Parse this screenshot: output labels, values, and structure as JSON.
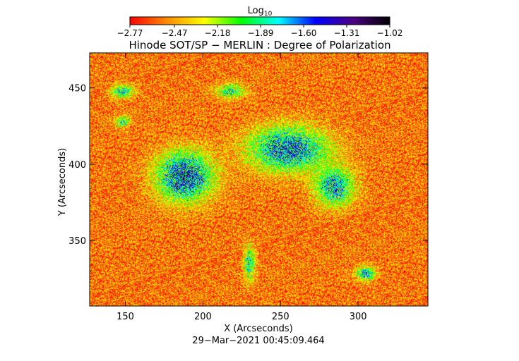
{
  "chart_data": {
    "type": "heatmap",
    "title": "Hinode SOT/SP − MERLIN : Degree of Polarization",
    "xlabel": "X (Arcseconds)",
    "ylabel": "Y (Arcseconds)",
    "timestamp": "29−Mar−2021 00:45:09.464",
    "xlim": [
      127,
      345
    ],
    "ylim": [
      307,
      473
    ],
    "x_ticks": [
      150,
      200,
      250,
      300
    ],
    "x_tick_labels": [
      "150",
      "200",
      "250",
      "300"
    ],
    "y_ticks": [
      350,
      400,
      450
    ],
    "y_tick_labels": [
      "350",
      "400",
      "450"
    ],
    "colorbar": {
      "label_base": "Log",
      "label_sub": "10",
      "min": -2.77,
      "max": -1.02,
      "tick_values": [
        -2.77,
        -2.47,
        -2.18,
        -1.89,
        -1.6,
        -1.31,
        -1.02
      ],
      "tick_labels": [
        "−2.77",
        "−2.47",
        "−2.18",
        "−1.89",
        "−1.60",
        "−1.31",
        "−1.02"
      ],
      "colormap": [
        "#ff0000",
        "#ff8c00",
        "#ffff00",
        "#00ff00",
        "#00ffff",
        "#0000ff",
        "#4b0082",
        "#000000"
      ]
    },
    "background_level": -2.55,
    "regions": [
      {
        "name": "plage-west",
        "x": 188,
        "y": 392,
        "rx": 20,
        "ry": 18,
        "peak": -1.25
      },
      {
        "name": "plage-center",
        "x": 255,
        "y": 410,
        "rx": 28,
        "ry": 16,
        "peak": -1.35
      },
      {
        "name": "plage-east",
        "x": 285,
        "y": 385,
        "rx": 14,
        "ry": 14,
        "peak": -1.55
      },
      {
        "name": "patch-nw",
        "x": 148,
        "y": 448,
        "rx": 8,
        "ry": 5,
        "peak": -1.7
      },
      {
        "name": "patch-north",
        "x": 218,
        "y": 448,
        "rx": 10,
        "ry": 5,
        "peak": -1.75
      },
      {
        "name": "patch-west",
        "x": 148,
        "y": 428,
        "rx": 5,
        "ry": 4,
        "peak": -1.8
      },
      {
        "name": "patch-south",
        "x": 305,
        "y": 328,
        "rx": 7,
        "ry": 5,
        "peak": -1.6
      },
      {
        "name": "patch-mid",
        "x": 230,
        "y": 335,
        "rx": 4,
        "ry": 12,
        "peak": -1.7
      }
    ]
  }
}
